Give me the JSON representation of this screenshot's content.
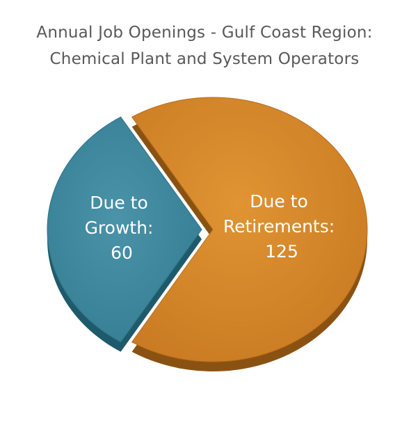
{
  "chart_data": {
    "type": "pie",
    "title_lines": [
      "Annual Job Openings - Gulf Coast Region:",
      "Chemical Plant and System Operators"
    ],
    "slices": [
      {
        "label_lines": [
          "Due to",
          "Growth:",
          "60"
        ],
        "value": 60,
        "color": "#3E8AA0"
      },
      {
        "label_lines": [
          "Due to",
          "Retirements:",
          "125"
        ],
        "value": 125,
        "color": "#D3862A"
      }
    ],
    "legend": "none",
    "exploded": true
  }
}
